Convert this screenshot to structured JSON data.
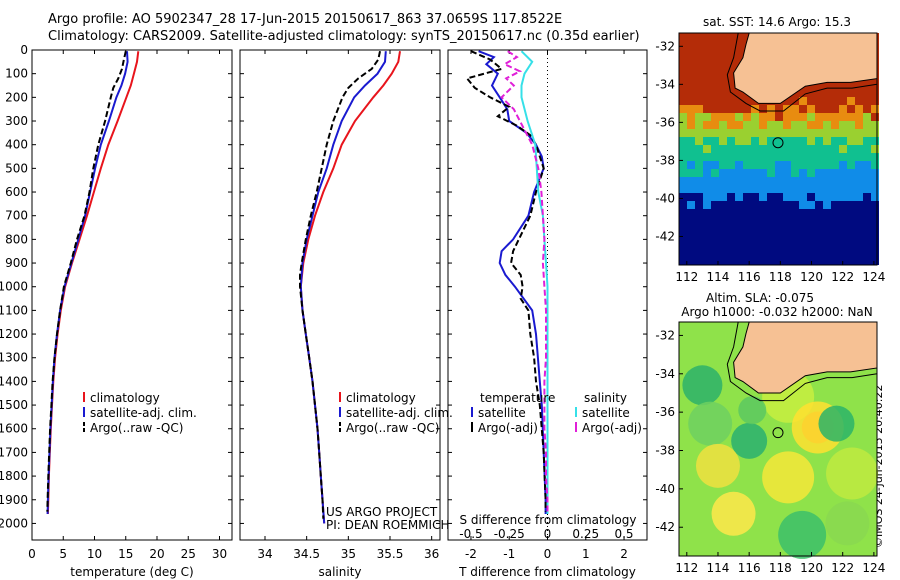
{
  "header": {
    "line1": "Argo profile: AO 5902347_28 17-Jun-2015 20150617_863 37.0659S 117.8522E",
    "line2": "Climatology: CARS2009. Satellite-adjusted climatology: synTS_20150617.nc (0.35d earlier)"
  },
  "stamp": "©IMOS 24-Jun-2015 20:40:22",
  "colors": {
    "clim": "#e8141c",
    "sat": "#1a1ad0",
    "argo": "#000000",
    "sal_sat": "#36e0e8",
    "sal_argo": "#e020d8",
    "land": "#f6c194",
    "frame": "#000000"
  },
  "chart_data": [
    {
      "type": "line",
      "id": "temperature",
      "xlabel": "temperature (deg C)",
      "xlim": [
        0,
        32
      ],
      "xticks": [
        0,
        5,
        10,
        15,
        20,
        25,
        30
      ],
      "ylim": [
        2070,
        0
      ],
      "yticks": [
        0,
        100,
        200,
        300,
        400,
        500,
        600,
        700,
        800,
        900,
        1000,
        1100,
        1200,
        1300,
        1400,
        1500,
        1600,
        1700,
        1800,
        1900,
        2000
      ],
      "legend": [
        "climatology",
        "satellite-adj. clim.",
        "Argo(..raw -QC)"
      ],
      "series": [
        {
          "name": "climatology",
          "depth": [
            5,
            50,
            100,
            150,
            200,
            300,
            400,
            500,
            600,
            700,
            800,
            900,
            1000,
            1100,
            1200,
            1300,
            1400,
            1500,
            1600,
            1700,
            1800,
            1900,
            1960
          ],
          "values": [
            17.0,
            16.8,
            16.3,
            15.8,
            15.1,
            13.7,
            12.2,
            11.0,
            9.9,
            8.8,
            7.6,
            6.4,
            5.3,
            4.6,
            4.1,
            3.7,
            3.4,
            3.2,
            3.0,
            2.85,
            2.7,
            2.6,
            2.55
          ]
        },
        {
          "name": "satellite-adj. clim.",
          "depth": [
            5,
            50,
            100,
            150,
            200,
            300,
            400,
            500,
            600,
            700,
            800,
            900,
            1000,
            1100,
            1200,
            1300,
            1400,
            1500,
            1600,
            1700,
            1800,
            1900,
            1960
          ],
          "values": [
            15.2,
            15.3,
            14.9,
            14.3,
            13.5,
            12.3,
            11.0,
            10.1,
            9.3,
            8.5,
            7.4,
            6.3,
            5.2,
            4.5,
            4.0,
            3.6,
            3.35,
            3.15,
            2.95,
            2.8,
            2.65,
            2.55,
            2.5
          ]
        },
        {
          "name": "Argo(..raw -QC)",
          "depth": [
            5,
            40,
            80,
            120,
            160,
            200,
            300,
            400,
            500,
            600,
            700,
            800,
            900,
            1000,
            1100,
            1200,
            1300,
            1400,
            1500,
            1600,
            1700,
            1800,
            1900,
            1950
          ],
          "values": [
            15.0,
            14.7,
            14.4,
            13.8,
            13.0,
            12.6,
            11.7,
            10.6,
            9.8,
            9.2,
            8.4,
            7.2,
            6.2,
            5.1,
            4.5,
            4.0,
            3.6,
            3.3,
            3.1,
            2.9,
            2.75,
            2.6,
            2.5,
            2.45
          ]
        }
      ]
    },
    {
      "type": "line",
      "id": "salinity",
      "xlabel": "salinity",
      "xlim": [
        33.7,
        36.1
      ],
      "xticks": [
        34,
        34.5,
        35,
        35.5,
        36
      ],
      "ylim": [
        2070,
        0
      ],
      "legend": [
        "climatology",
        "satellite-adj. clim.",
        "Argo(..raw -QC)"
      ],
      "annotation": [
        "US ARGO PROJECT",
        "PI: DEAN ROEMMICH"
      ],
      "series": [
        {
          "name": "climatology",
          "depth": [
            5,
            50,
            100,
            150,
            200,
            300,
            400,
            500,
            600,
            700,
            800,
            900,
            1000,
            1100,
            1200,
            1300,
            1400,
            1500,
            1600,
            1700,
            1800,
            1900,
            2000
          ],
          "values": [
            35.62,
            35.6,
            35.52,
            35.42,
            35.3,
            35.08,
            34.92,
            34.82,
            34.7,
            34.6,
            34.52,
            34.46,
            34.43,
            34.45,
            34.49,
            34.53,
            34.57,
            34.6,
            34.63,
            34.65,
            34.67,
            34.69,
            34.71
          ]
        },
        {
          "name": "satellite-adj. clim.",
          "depth": [
            5,
            50,
            100,
            150,
            200,
            300,
            400,
            500,
            600,
            700,
            800,
            900,
            1000,
            1100,
            1200,
            1300,
            1400,
            1500,
            1600,
            1700,
            1800,
            1900,
            2000
          ],
          "values": [
            35.45,
            35.44,
            35.35,
            35.2,
            35.07,
            34.92,
            34.82,
            34.74,
            34.64,
            34.57,
            34.5,
            34.45,
            34.43,
            34.45,
            34.49,
            34.53,
            34.57,
            34.6,
            34.63,
            34.65,
            34.67,
            34.69,
            34.71
          ]
        },
        {
          "name": "Argo(..raw -QC)",
          "depth": [
            5,
            40,
            80,
            120,
            160,
            200,
            300,
            400,
            500,
            600,
            700,
            800,
            900,
            950,
            1000,
            1100,
            1200,
            1300,
            1400,
            1500,
            1600,
            1700,
            1800,
            1900,
            1980
          ],
          "values": [
            35.38,
            35.36,
            35.28,
            35.12,
            35.0,
            34.93,
            34.82,
            34.74,
            34.68,
            34.62,
            34.55,
            34.49,
            34.44,
            34.42,
            34.42,
            34.45,
            34.49,
            34.53,
            34.57,
            34.6,
            34.63,
            34.65,
            34.67,
            34.69,
            34.7
          ]
        }
      ]
    },
    {
      "type": "line",
      "id": "differences",
      "xlabel": "T difference from climatology",
      "xlabel_top": "S difference from climatology",
      "xlim": [
        -2.6,
        2.6
      ],
      "xticks": [
        -2,
        -1,
        0,
        1,
        2
      ],
      "s_xticks": [
        "-0.5",
        "-0.25",
        "0",
        "0.25",
        "0.5"
      ],
      "ylim": [
        2070,
        0
      ],
      "legend_left_title": "temperature",
      "legend_right_title": "salinity",
      "legend_left": [
        "satellite",
        "Argo(-adj)"
      ],
      "legend_right": [
        "satellite",
        "Argo(-adj)"
      ],
      "series": [
        {
          "name": "temperature satellite",
          "depth": [
            5,
            30,
            60,
            100,
            150,
            200,
            250,
            300,
            350,
            400,
            450,
            500,
            600,
            700,
            800,
            850,
            900,
            950,
            1000,
            1100,
            1200,
            1300,
            1400,
            1500,
            1700,
            1900,
            1960
          ],
          "values": [
            -1.8,
            -1.4,
            -1.6,
            -1.3,
            -1.45,
            -1.25,
            -1.05,
            -1.0,
            -0.55,
            -0.3,
            -0.15,
            -0.1,
            -0.35,
            -0.5,
            -0.9,
            -1.2,
            -1.25,
            -1.1,
            -0.85,
            -0.4,
            -0.3,
            -0.25,
            -0.2,
            -0.15,
            -0.1,
            -0.05,
            -0.05
          ]
        },
        {
          "name": "temperature Argo(-adj)",
          "depth": [
            5,
            40,
            80,
            120,
            160,
            200,
            240,
            280,
            320,
            360,
            400,
            450,
            500,
            600,
            700,
            800,
            850,
            900,
            950,
            1000,
            1050,
            1100,
            1200,
            1300,
            1400,
            1500,
            1700,
            1900,
            1950
          ],
          "values": [
            -2.0,
            -1.5,
            -1.2,
            -2.1,
            -1.9,
            -1.5,
            -1.0,
            -1.3,
            -0.8,
            -0.45,
            -0.3,
            -0.2,
            -0.1,
            -0.3,
            -0.45,
            -0.75,
            -0.9,
            -0.95,
            -0.7,
            -0.65,
            -0.7,
            -0.5,
            -0.45,
            -0.35,
            -0.3,
            -0.2,
            -0.1,
            -0.05,
            -0.05
          ]
        },
        {
          "name": "salinity satellite",
          "depth": [
            5,
            50,
            100,
            150,
            200,
            300,
            400,
            500,
            600,
            700,
            800,
            900,
            1000,
            1100,
            1200,
            1400,
            1600,
            1800,
            1960
          ],
          "values": [
            -0.17,
            -0.1,
            -0.15,
            -0.17,
            -0.17,
            -0.13,
            -0.08,
            -0.07,
            -0.06,
            -0.03,
            -0.02,
            -0.01,
            0.0,
            0.0,
            0.0,
            0.0,
            0.0,
            0.0,
            0.0
          ]
        },
        {
          "name": "salinity Argo(-adj)",
          "depth": [
            5,
            30,
            60,
            90,
            120,
            150,
            200,
            250,
            300,
            400,
            500,
            600,
            700,
            800,
            900,
            1000,
            1100,
            1200,
            1300,
            1400,
            1500,
            1600,
            1700,
            1800,
            1900,
            1960
          ],
          "values": [
            -0.26,
            -0.2,
            -0.28,
            -0.18,
            -0.27,
            -0.22,
            -0.3,
            -0.22,
            -0.18,
            -0.1,
            -0.06,
            -0.04,
            -0.03,
            -0.02,
            -0.03,
            -0.02,
            -0.01,
            -0.01,
            -0.01,
            -0.02,
            -0.02,
            -0.02,
            -0.01,
            -0.01,
            0.0,
            0.0
          ]
        }
      ]
    },
    {
      "type": "heatmap",
      "id": "sst-map",
      "title": "sat. SST: 14.6  Argo: 15.3",
      "xlim": [
        111.5,
        124.2
      ],
      "ylim": [
        -43.5,
        -31.3
      ],
      "xticks": [
        112,
        114,
        116,
        118,
        120,
        122,
        124
      ],
      "yticks": [
        -32,
        -34,
        -36,
        -38,
        -40,
        -42
      ],
      "marker": {
        "lon": 117.85,
        "lat": -37.07
      },
      "bands": [
        {
          "lat_to": -35.3,
          "color": "#b42c08"
        },
        {
          "lat_to": -36.0,
          "color": "#e88c10"
        },
        {
          "lat_to": -37.0,
          "color": "#9ad030"
        },
        {
          "lat_to": -38.4,
          "color": "#10c090"
        },
        {
          "lat_to": -40.0,
          "color": "#108ce8"
        },
        {
          "lat_to": -43.5,
          "color": "#000a80"
        }
      ]
    },
    {
      "type": "heatmap",
      "id": "sla-map",
      "title": "Altim. SLA: -0.075",
      "subtitle": "Argo h1000: -0.032 h2000: NaN",
      "xlim": [
        111.5,
        124.2
      ],
      "ylim": [
        -43.5,
        -31.3
      ],
      "xticks": [
        112,
        114,
        116,
        118,
        120,
        122,
        124
      ],
      "yticks": [
        -32,
        -34,
        -36,
        -38,
        -40,
        -42
      ],
      "marker": {
        "lon": 117.85,
        "lat": -37.07
      }
    }
  ]
}
